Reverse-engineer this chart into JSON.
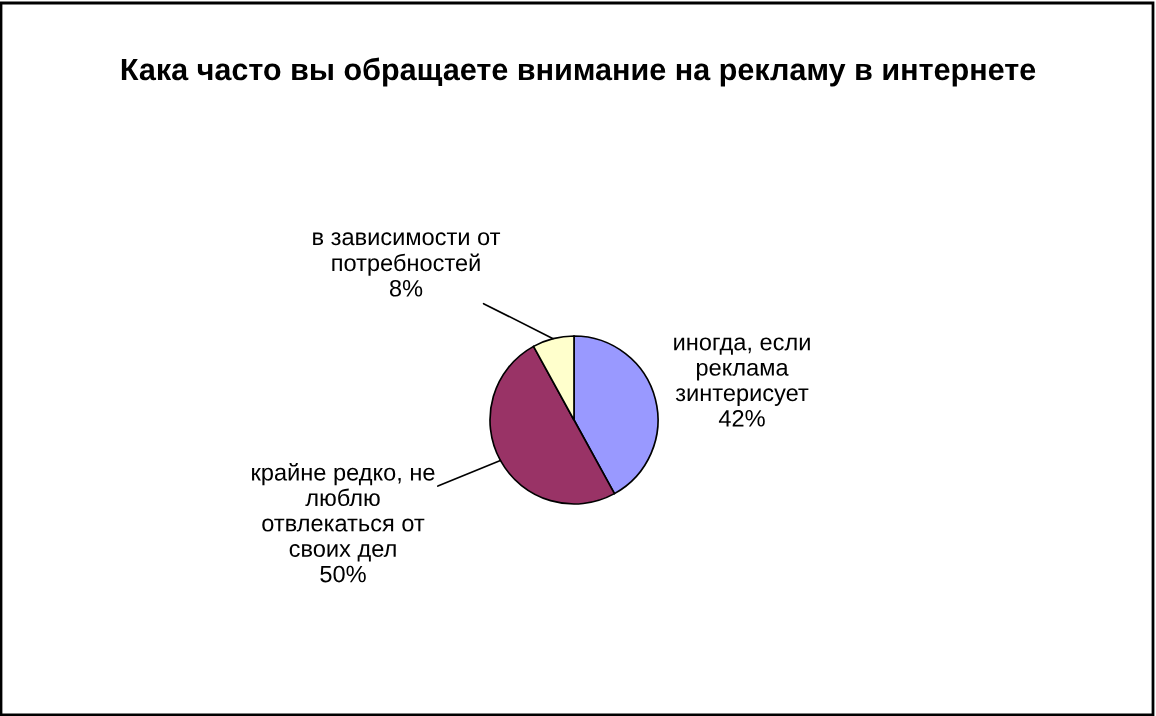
{
  "chart_data": {
    "type": "pie",
    "title": "Кака часто вы обращаете внимание на рекламу в интернете",
    "categories": [
      "иногда, если\nреклама\nзинтерисует",
      "крайне редко, не\nлюблю\nотвлекаться от\nсвоих дел",
      "в зависимости от\nпотребностей"
    ],
    "values": [
      42,
      50,
      8
    ],
    "colors": [
      "#9999ff",
      "#993366",
      "#ffffcc"
    ],
    "value_labels": [
      "42%",
      "50%",
      "8%"
    ]
  }
}
